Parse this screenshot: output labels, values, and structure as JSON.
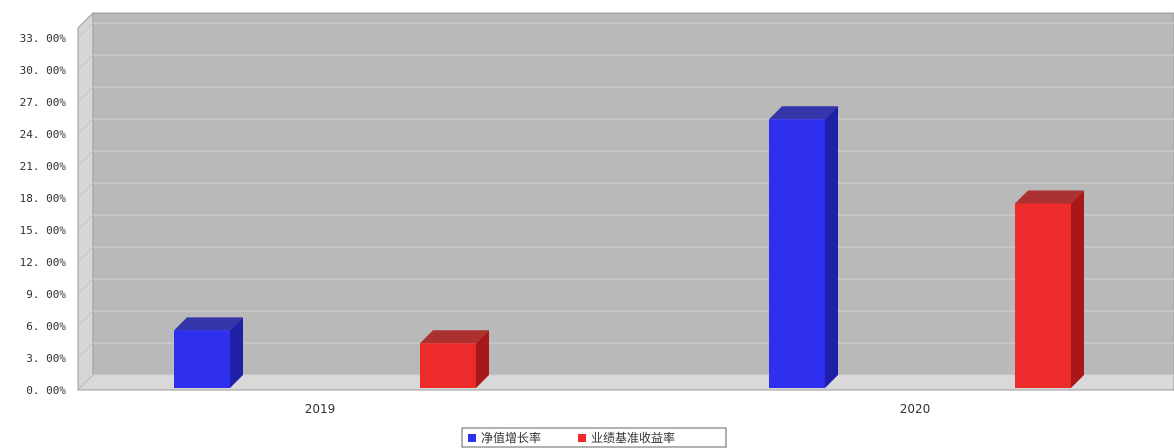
{
  "chart_data": {
    "type": "bar",
    "categories": [
      "2019",
      "2020"
    ],
    "series": [
      {
        "name": "净值增长率",
        "values": [
          5.4,
          25.2
        ],
        "color": "#2f2fef",
        "side_color": "#1f1fa8"
      },
      {
        "name": "业绩基准收益率",
        "values": [
          4.2,
          17.3
        ],
        "color": "#ee2b2b",
        "side_color": "#a81818"
      }
    ],
    "y_ticks": [
      "0. 00%",
      "3. 00%",
      "6. 00%",
      "9. 00%",
      "12. 00%",
      "15. 00%",
      "18. 00%",
      "21. 00%",
      "24. 00%",
      "27. 00%",
      "30. 00%",
      "33. 00%"
    ],
    "ylim": [
      0,
      33
    ],
    "grid": true,
    "legend_position": "bottom-center",
    "plot_background": "#b9b9b9"
  }
}
